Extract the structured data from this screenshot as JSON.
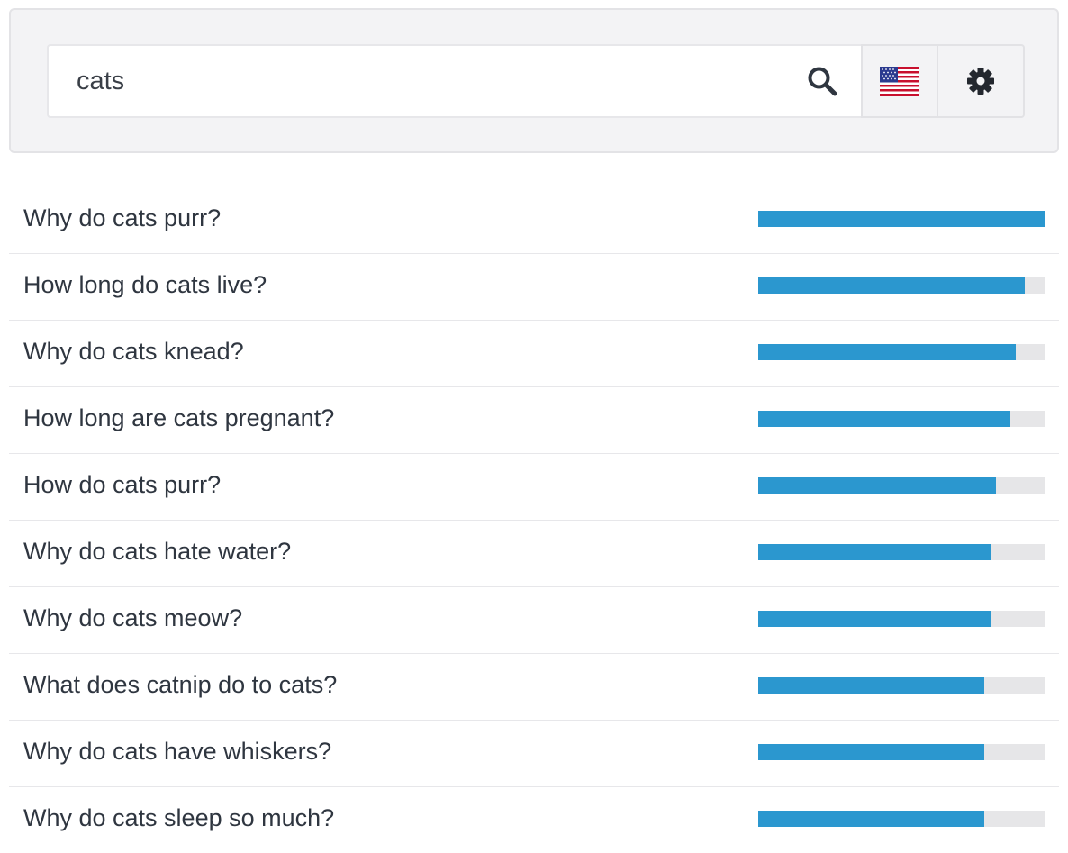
{
  "search": {
    "value": "cats",
    "placeholder": "",
    "icon": "search-icon"
  },
  "country": {
    "icon": "us-flag-icon"
  },
  "settings": {
    "icon": "gear-icon"
  },
  "colors": {
    "bar_fill": "#2b97cf",
    "bar_track": "#e6e6e8"
  },
  "results": [
    {
      "label": "Why do cats purr?",
      "score": 1.0
    },
    {
      "label": "How long do cats live?",
      "score": 0.93
    },
    {
      "label": "Why do cats knead?",
      "score": 0.9
    },
    {
      "label": "How long are cats pregnant?",
      "score": 0.88
    },
    {
      "label": "How do cats purr?",
      "score": 0.83
    },
    {
      "label": "Why do cats hate water?",
      "score": 0.81
    },
    {
      "label": "Why do cats meow?",
      "score": 0.81
    },
    {
      "label": "What does catnip do to cats?",
      "score": 0.79
    },
    {
      "label": "Why do cats have whiskers?",
      "score": 0.79
    },
    {
      "label": "Why do cats sleep so much?",
      "score": 0.79
    }
  ]
}
